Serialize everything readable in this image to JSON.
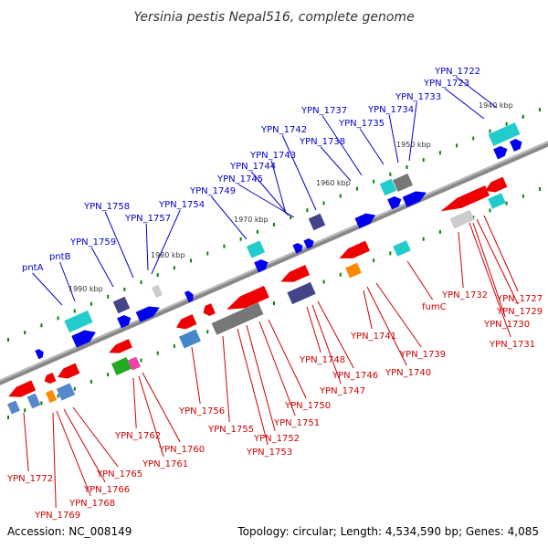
{
  "title": "Yersinia pestis Nepal516, complete genome",
  "footer": {
    "accession": "Accession: NC_008149",
    "summary": "Topology: circular; Length: 4,534,590 bp; Genes: 4,085"
  },
  "colors": {
    "forward_label": "#0000cc",
    "reverse_label": "#cc0000",
    "backbone": "#888888",
    "tick": "#008800"
  },
  "scale": {
    "kbp_labels": [
      "1990 kbp",
      "1980 kbp",
      "1970 kbp",
      "1960 kbp",
      "1950 kbp",
      "1940 kbp"
    ]
  },
  "forward_genes": [
    "pntA",
    "pntB",
    "YPN_1759",
    "YPN_1758",
    "YPN_1757",
    "YPN_1754",
    "YPN_1749",
    "YPN_1745",
    "YPN_1744",
    "YPN_1743",
    "YPN_1742",
    "YPN_1738",
    "YPN_1737",
    "YPN_1735",
    "YPN_1734",
    "YPN_1733",
    "YPN_1723",
    "YPN_1722"
  ],
  "reverse_genes": [
    "YPN_1772",
    "YPN_1769",
    "YPN_1768",
    "YPN_1766",
    "YPN_1765",
    "YPN_1762",
    "YPN_1761",
    "YPN_1760",
    "YPN_1756",
    "YPN_1755",
    "YPN_1753",
    "YPN_1752",
    "YPN_1751",
    "YPN_1750",
    "YPN_1748",
    "YPN_1747",
    "YPN_1746",
    "YPN_1741",
    "YPN_1740",
    "YPN_1739",
    "fumC",
    "YPN_1732",
    "YPN_1731",
    "YPN_1730",
    "YPN_1729",
    "YPN_1727"
  ]
}
